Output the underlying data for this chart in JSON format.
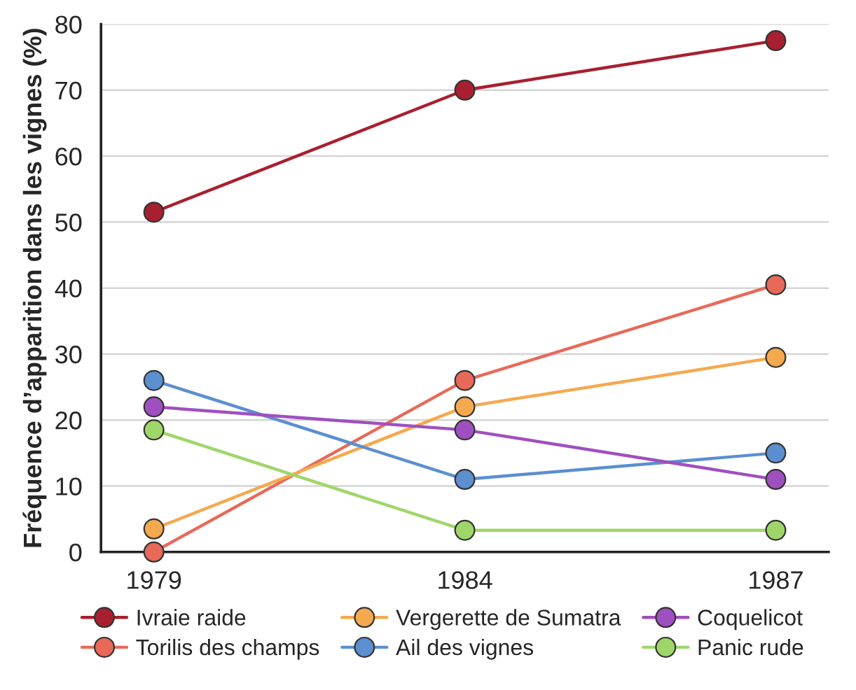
{
  "chart_data": {
    "type": "line",
    "ylabel": "Fréquence d’apparition dans les vignes (%)",
    "categories": [
      "1979",
      "1984",
      "1987"
    ],
    "series": [
      {
        "name": "Ivraie raide",
        "color": "#a8202f",
        "values": [
          51.5,
          70,
          77.5
        ]
      },
      {
        "name": "Torilis des champs",
        "color": "#e8695a",
        "values": [
          0,
          26,
          40.5
        ]
      },
      {
        "name": "Vergerette de Sumatra",
        "color": "#f5a94f",
        "values": [
          3.5,
          22,
          29.5
        ]
      },
      {
        "name": "Ail des vignes",
        "color": "#5b8fd0",
        "values": [
          26,
          11,
          15
        ]
      },
      {
        "name": "Coquelicot",
        "color": "#a04fc0",
        "values": [
          22,
          18.5,
          11
        ]
      },
      {
        "name": "Panic rude",
        "color": "#9fd66a",
        "values": [
          18.5,
          3.3,
          3.3
        ]
      }
    ],
    "ylim": [
      0,
      80
    ],
    "yticks": [
      0,
      10,
      20,
      30,
      40,
      50,
      60,
      70,
      80
    ],
    "grid": "y",
    "legend": "bottom",
    "marker": "circle",
    "line_style": "solid"
  }
}
